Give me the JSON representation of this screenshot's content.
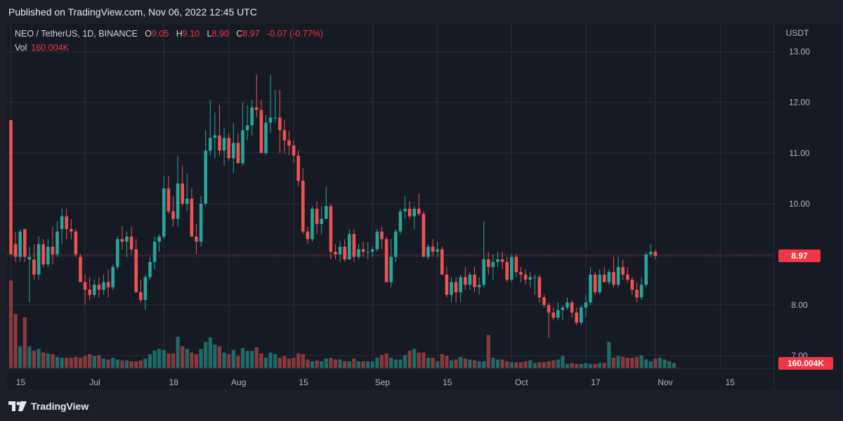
{
  "published": "Published on TradingView.com, Nov 06, 2022 12:45 UTC",
  "legend": {
    "symbol": "NEO / TetherUS, 1D, BINANCE",
    "o_label": "O",
    "o_value": "9.05",
    "h_label": "H",
    "h_value": "9.10",
    "l_label": "L",
    "l_value": "8.90",
    "c_label": "C",
    "c_value": "8.97",
    "change": "-0.07 (-0.77%)",
    "vol_label": "Vol",
    "vol_value": "160.004K"
  },
  "brand": "TradingView",
  "colors": {
    "up": "#26a69a",
    "down": "#ef5350",
    "bg": "#161a25",
    "grid": "#2a2e39",
    "text": "#b2b5be",
    "last": "#f23645"
  },
  "chart_data": {
    "type": "candlestick",
    "currency_label": "USDT",
    "y_ticks": [
      7.0,
      8.0,
      9.0,
      10.0,
      11.0,
      12.0,
      13.0
    ],
    "y_tick_labels": [
      "7.00",
      "8.00",
      "",
      "10.00",
      "11.00",
      "12.00",
      "13.00"
    ],
    "ylim": [
      6.75,
      13.55
    ],
    "x_ticks": [
      {
        "day": 0,
        "label": "15"
      },
      {
        "day": 16,
        "label": "Jul"
      },
      {
        "day": 33,
        "label": "18"
      },
      {
        "day": 47,
        "label": "Aug"
      },
      {
        "day": 61,
        "label": "15"
      },
      {
        "day": 78,
        "label": "Sep"
      },
      {
        "day": 92,
        "label": "15"
      },
      {
        "day": 108,
        "label": "Oct"
      },
      {
        "day": 124,
        "label": "17"
      },
      {
        "day": 139,
        "label": "Nov"
      },
      {
        "day": 153,
        "label": "15"
      }
    ],
    "last_price": 8.97,
    "last_price_label": "8.97",
    "last_volume_label": "160.004K",
    "candles": [
      [
        11.65,
        11.65,
        9.0,
        9.0
      ],
      [
        9.2,
        9.45,
        8.85,
        8.95
      ],
      [
        8.95,
        9.5,
        8.85,
        9.45
      ],
      [
        9.5,
        9.5,
        8.85,
        8.95
      ],
      [
        8.9,
        9.15,
        8.05,
        8.95
      ],
      [
        8.9,
        9.2,
        8.5,
        8.6
      ],
      [
        8.6,
        9.35,
        8.5,
        9.2
      ],
      [
        9.2,
        9.3,
        8.75,
        8.8
      ],
      [
        8.8,
        9.3,
        8.75,
        9.15
      ],
      [
        9.15,
        9.55,
        8.8,
        9.0
      ],
      [
        9.0,
        9.65,
        8.95,
        9.45
      ],
      [
        9.5,
        9.9,
        9.2,
        9.75
      ],
      [
        9.75,
        9.9,
        9.3,
        9.5
      ],
      [
        9.5,
        9.7,
        9.3,
        9.45
      ],
      [
        9.45,
        9.5,
        8.95,
        9.0
      ],
      [
        8.95,
        9.0,
        8.45,
        8.45
      ],
      [
        8.45,
        8.6,
        8.0,
        8.3
      ],
      [
        8.3,
        8.55,
        8.1,
        8.2
      ],
      [
        8.2,
        8.5,
        8.15,
        8.4
      ],
      [
        8.4,
        8.55,
        8.15,
        8.3
      ],
      [
        8.3,
        8.6,
        8.2,
        8.45
      ],
      [
        8.45,
        8.7,
        8.15,
        8.35
      ],
      [
        8.35,
        8.8,
        8.3,
        8.75
      ],
      [
        8.75,
        9.35,
        8.7,
        9.3
      ],
      [
        9.3,
        9.55,
        9.1,
        9.25
      ],
      [
        9.25,
        9.45,
        8.95,
        9.35
      ],
      [
        9.35,
        9.55,
        9.0,
        9.1
      ],
      [
        9.1,
        9.3,
        8.3,
        8.25
      ],
      [
        8.25,
        8.5,
        8.05,
        8.1
      ],
      [
        8.1,
        8.6,
        7.9,
        8.55
      ],
      [
        8.55,
        8.95,
        8.5,
        8.85
      ],
      [
        8.85,
        9.35,
        8.7,
        9.25
      ],
      [
        9.25,
        9.4,
        9.05,
        9.35
      ],
      [
        9.35,
        10.55,
        9.3,
        10.3
      ],
      [
        10.3,
        10.55,
        9.8,
        9.85
      ],
      [
        9.85,
        10.15,
        9.55,
        9.7
      ],
      [
        9.7,
        10.95,
        9.55,
        10.4
      ],
      [
        10.4,
        10.75,
        9.95,
        10.0
      ],
      [
        10.0,
        10.6,
        9.85,
        10.1
      ],
      [
        10.1,
        10.3,
        9.35,
        9.35
      ],
      [
        9.35,
        9.6,
        9.0,
        9.25
      ],
      [
        9.25,
        10.15,
        9.15,
        10.0
      ],
      [
        10.0,
        11.45,
        9.95,
        11.05
      ],
      [
        11.05,
        12.05,
        10.95,
        11.3
      ],
      [
        11.3,
        11.8,
        10.9,
        11.35
      ],
      [
        11.35,
        11.95,
        10.95,
        11.05
      ],
      [
        11.05,
        11.5,
        10.75,
        11.3
      ],
      [
        11.3,
        11.4,
        10.85,
        10.9
      ],
      [
        10.9,
        11.6,
        10.6,
        11.2
      ],
      [
        11.2,
        11.4,
        10.8,
        10.8
      ],
      [
        10.8,
        12.0,
        10.75,
        11.45
      ],
      [
        11.45,
        11.95,
        11.25,
        11.55
      ],
      [
        11.55,
        12.05,
        11.35,
        11.9
      ],
      [
        11.9,
        12.55,
        11.7,
        11.85
      ],
      [
        11.85,
        12.05,
        11.0,
        11.0
      ],
      [
        11.0,
        11.75,
        10.95,
        11.6
      ],
      [
        11.6,
        12.55,
        11.4,
        11.7
      ],
      [
        11.7,
        12.25,
        11.6,
        11.7
      ],
      [
        11.7,
        12.25,
        11.0,
        11.45
      ],
      [
        11.45,
        11.65,
        11.0,
        11.25
      ],
      [
        11.25,
        11.45,
        10.95,
        11.15
      ],
      [
        11.15,
        11.25,
        10.8,
        10.95
      ],
      [
        10.95,
        11.05,
        10.35,
        10.45
      ],
      [
        10.45,
        10.7,
        9.4,
        9.45
      ],
      [
        9.45,
        9.55,
        9.2,
        9.3
      ],
      [
        9.3,
        9.95,
        9.25,
        9.9
      ],
      [
        9.9,
        10.05,
        9.4,
        9.6
      ],
      [
        9.6,
        9.95,
        9.4,
        9.7
      ],
      [
        9.7,
        10.35,
        9.7,
        9.95
      ],
      [
        9.95,
        10.0,
        8.9,
        9.05
      ],
      [
        9.05,
        9.2,
        8.9,
        9.0
      ],
      [
        9.0,
        9.25,
        8.85,
        9.15
      ],
      [
        9.15,
        9.3,
        8.85,
        8.9
      ],
      [
        8.9,
        9.5,
        8.9,
        9.4
      ],
      [
        9.4,
        9.5,
        8.85,
        8.95
      ],
      [
        8.95,
        9.2,
        8.9,
        9.1
      ],
      [
        9.1,
        9.25,
        8.95,
        9.05
      ],
      [
        9.05,
        9.25,
        8.9,
        9.05
      ],
      [
        9.05,
        9.15,
        8.95,
        9.1
      ],
      [
        9.1,
        9.5,
        9.05,
        9.45
      ],
      [
        9.45,
        9.55,
        9.1,
        9.3
      ],
      [
        9.3,
        9.35,
        8.45,
        8.45
      ],
      [
        8.45,
        9.3,
        8.35,
        8.95
      ],
      [
        8.95,
        9.5,
        8.85,
        9.45
      ],
      [
        9.45,
        9.9,
        9.4,
        9.85
      ],
      [
        9.85,
        10.15,
        9.7,
        9.9
      ],
      [
        9.9,
        10.05,
        9.7,
        9.75
      ],
      [
        9.75,
        9.95,
        9.5,
        9.9
      ],
      [
        9.9,
        10.2,
        9.75,
        9.8
      ],
      [
        9.8,
        9.85,
        8.95,
        8.95
      ],
      [
        8.95,
        9.2,
        8.9,
        9.15
      ],
      [
        9.15,
        9.3,
        8.95,
        9.05
      ],
      [
        9.05,
        9.25,
        8.95,
        9.1
      ],
      [
        9.1,
        9.15,
        8.6,
        8.6
      ],
      [
        8.6,
        8.75,
        8.15,
        8.2
      ],
      [
        8.2,
        8.55,
        8.05,
        8.45
      ],
      [
        8.45,
        8.55,
        8.05,
        8.25
      ],
      [
        8.25,
        8.6,
        8.05,
        8.55
      ],
      [
        8.55,
        8.75,
        8.3,
        8.4
      ],
      [
        8.4,
        8.65,
        8.3,
        8.6
      ],
      [
        8.6,
        8.75,
        8.25,
        8.35
      ],
      [
        8.35,
        8.55,
        8.2,
        8.4
      ],
      [
        8.4,
        9.65,
        8.35,
        8.9
      ],
      [
        8.9,
        9.05,
        8.6,
        8.75
      ],
      [
        8.75,
        9.0,
        8.5,
        8.85
      ],
      [
        8.85,
        9.05,
        8.75,
        8.9
      ],
      [
        8.9,
        9.05,
        8.7,
        8.85
      ],
      [
        8.85,
        8.95,
        8.45,
        8.5
      ],
      [
        8.5,
        9.0,
        8.45,
        8.95
      ],
      [
        8.95,
        9.0,
        8.55,
        8.65
      ],
      [
        8.65,
        8.75,
        8.45,
        8.6
      ],
      [
        8.6,
        8.7,
        8.4,
        8.5
      ],
      [
        8.5,
        8.65,
        8.35,
        8.55
      ],
      [
        8.55,
        8.6,
        8.2,
        8.55
      ],
      [
        8.55,
        8.6,
        8.05,
        8.15
      ],
      [
        8.15,
        8.2,
        7.95,
        8.0
      ],
      [
        8.0,
        8.05,
        7.35,
        7.85
      ],
      [
        7.85,
        7.95,
        7.7,
        7.75
      ],
      [
        7.75,
        8.05,
        7.7,
        7.9
      ],
      [
        7.9,
        8.0,
        7.7,
        7.95
      ],
      [
        7.95,
        8.15,
        7.9,
        8.05
      ],
      [
        8.05,
        8.1,
        7.75,
        7.85
      ],
      [
        7.85,
        7.95,
        7.6,
        7.65
      ],
      [
        7.65,
        8.0,
        7.6,
        7.95
      ],
      [
        7.95,
        8.2,
        7.75,
        8.05
      ],
      [
        8.05,
        8.75,
        8.0,
        8.6
      ],
      [
        8.6,
        8.65,
        8.2,
        8.25
      ],
      [
        8.25,
        8.7,
        8.2,
        8.6
      ],
      [
        8.6,
        8.75,
        8.45,
        8.45
      ],
      [
        8.45,
        8.7,
        8.4,
        8.65
      ],
      [
        8.65,
        8.95,
        8.35,
        8.4
      ],
      [
        8.4,
        8.95,
        8.35,
        8.75
      ],
      [
        8.75,
        8.9,
        8.5,
        8.6
      ],
      [
        8.6,
        8.75,
        8.45,
        8.5
      ],
      [
        8.5,
        8.55,
        8.2,
        8.3
      ],
      [
        8.3,
        8.45,
        8.05,
        8.15
      ],
      [
        8.15,
        8.55,
        8.1,
        8.4
      ],
      [
        8.4,
        9.05,
        8.35,
        9.0
      ],
      [
        9.0,
        9.2,
        8.95,
        9.05
      ],
      [
        9.05,
        9.1,
        8.9,
        8.97
      ]
    ],
    "volumes": [
      1.0,
      0.62,
      0.25,
      0.58,
      0.25,
      0.2,
      0.22,
      0.18,
      0.17,
      0.16,
      0.13,
      0.12,
      0.12,
      0.12,
      0.13,
      0.12,
      0.14,
      0.16,
      0.14,
      0.15,
      0.11,
      0.1,
      0.12,
      0.1,
      0.09,
      0.09,
      0.08,
      0.08,
      0.09,
      0.11,
      0.16,
      0.2,
      0.22,
      0.21,
      0.17,
      0.17,
      0.36,
      0.25,
      0.22,
      0.18,
      0.16,
      0.22,
      0.3,
      0.35,
      0.27,
      0.25,
      0.18,
      0.16,
      0.21,
      0.14,
      0.23,
      0.2,
      0.2,
      0.24,
      0.17,
      0.12,
      0.18,
      0.16,
      0.12,
      0.14,
      0.11,
      0.12,
      0.17,
      0.16,
      0.1,
      0.08,
      0.09,
      0.08,
      0.11,
      0.12,
      0.1,
      0.1,
      0.08,
      0.08,
      0.11,
      0.08,
      0.08,
      0.08,
      0.08,
      0.12,
      0.15,
      0.17,
      0.12,
      0.1,
      0.1,
      0.15,
      0.2,
      0.22,
      0.18,
      0.18,
      0.12,
      0.12,
      0.08,
      0.16,
      0.14,
      0.09,
      0.1,
      0.13,
      0.11,
      0.1,
      0.09,
      0.08,
      0.08,
      0.38,
      0.12,
      0.1,
      0.1,
      0.08,
      0.07,
      0.07,
      0.07,
      0.08,
      0.09,
      0.06,
      0.07,
      0.07,
      0.08,
      0.09,
      0.1,
      0.14,
      0.05,
      0.06,
      0.05,
      0.05,
      0.06,
      0.05,
      0.05,
      0.06,
      0.06,
      0.3,
      0.12,
      0.14,
      0.13,
      0.12,
      0.12,
      0.13,
      0.15,
      0.1,
      0.08,
      0.11,
      0.12,
      0.1,
      0.08,
      0.06
    ],
    "volume_up_color": "#1e6b67",
    "volume_down_color": "#8a3a3c"
  }
}
